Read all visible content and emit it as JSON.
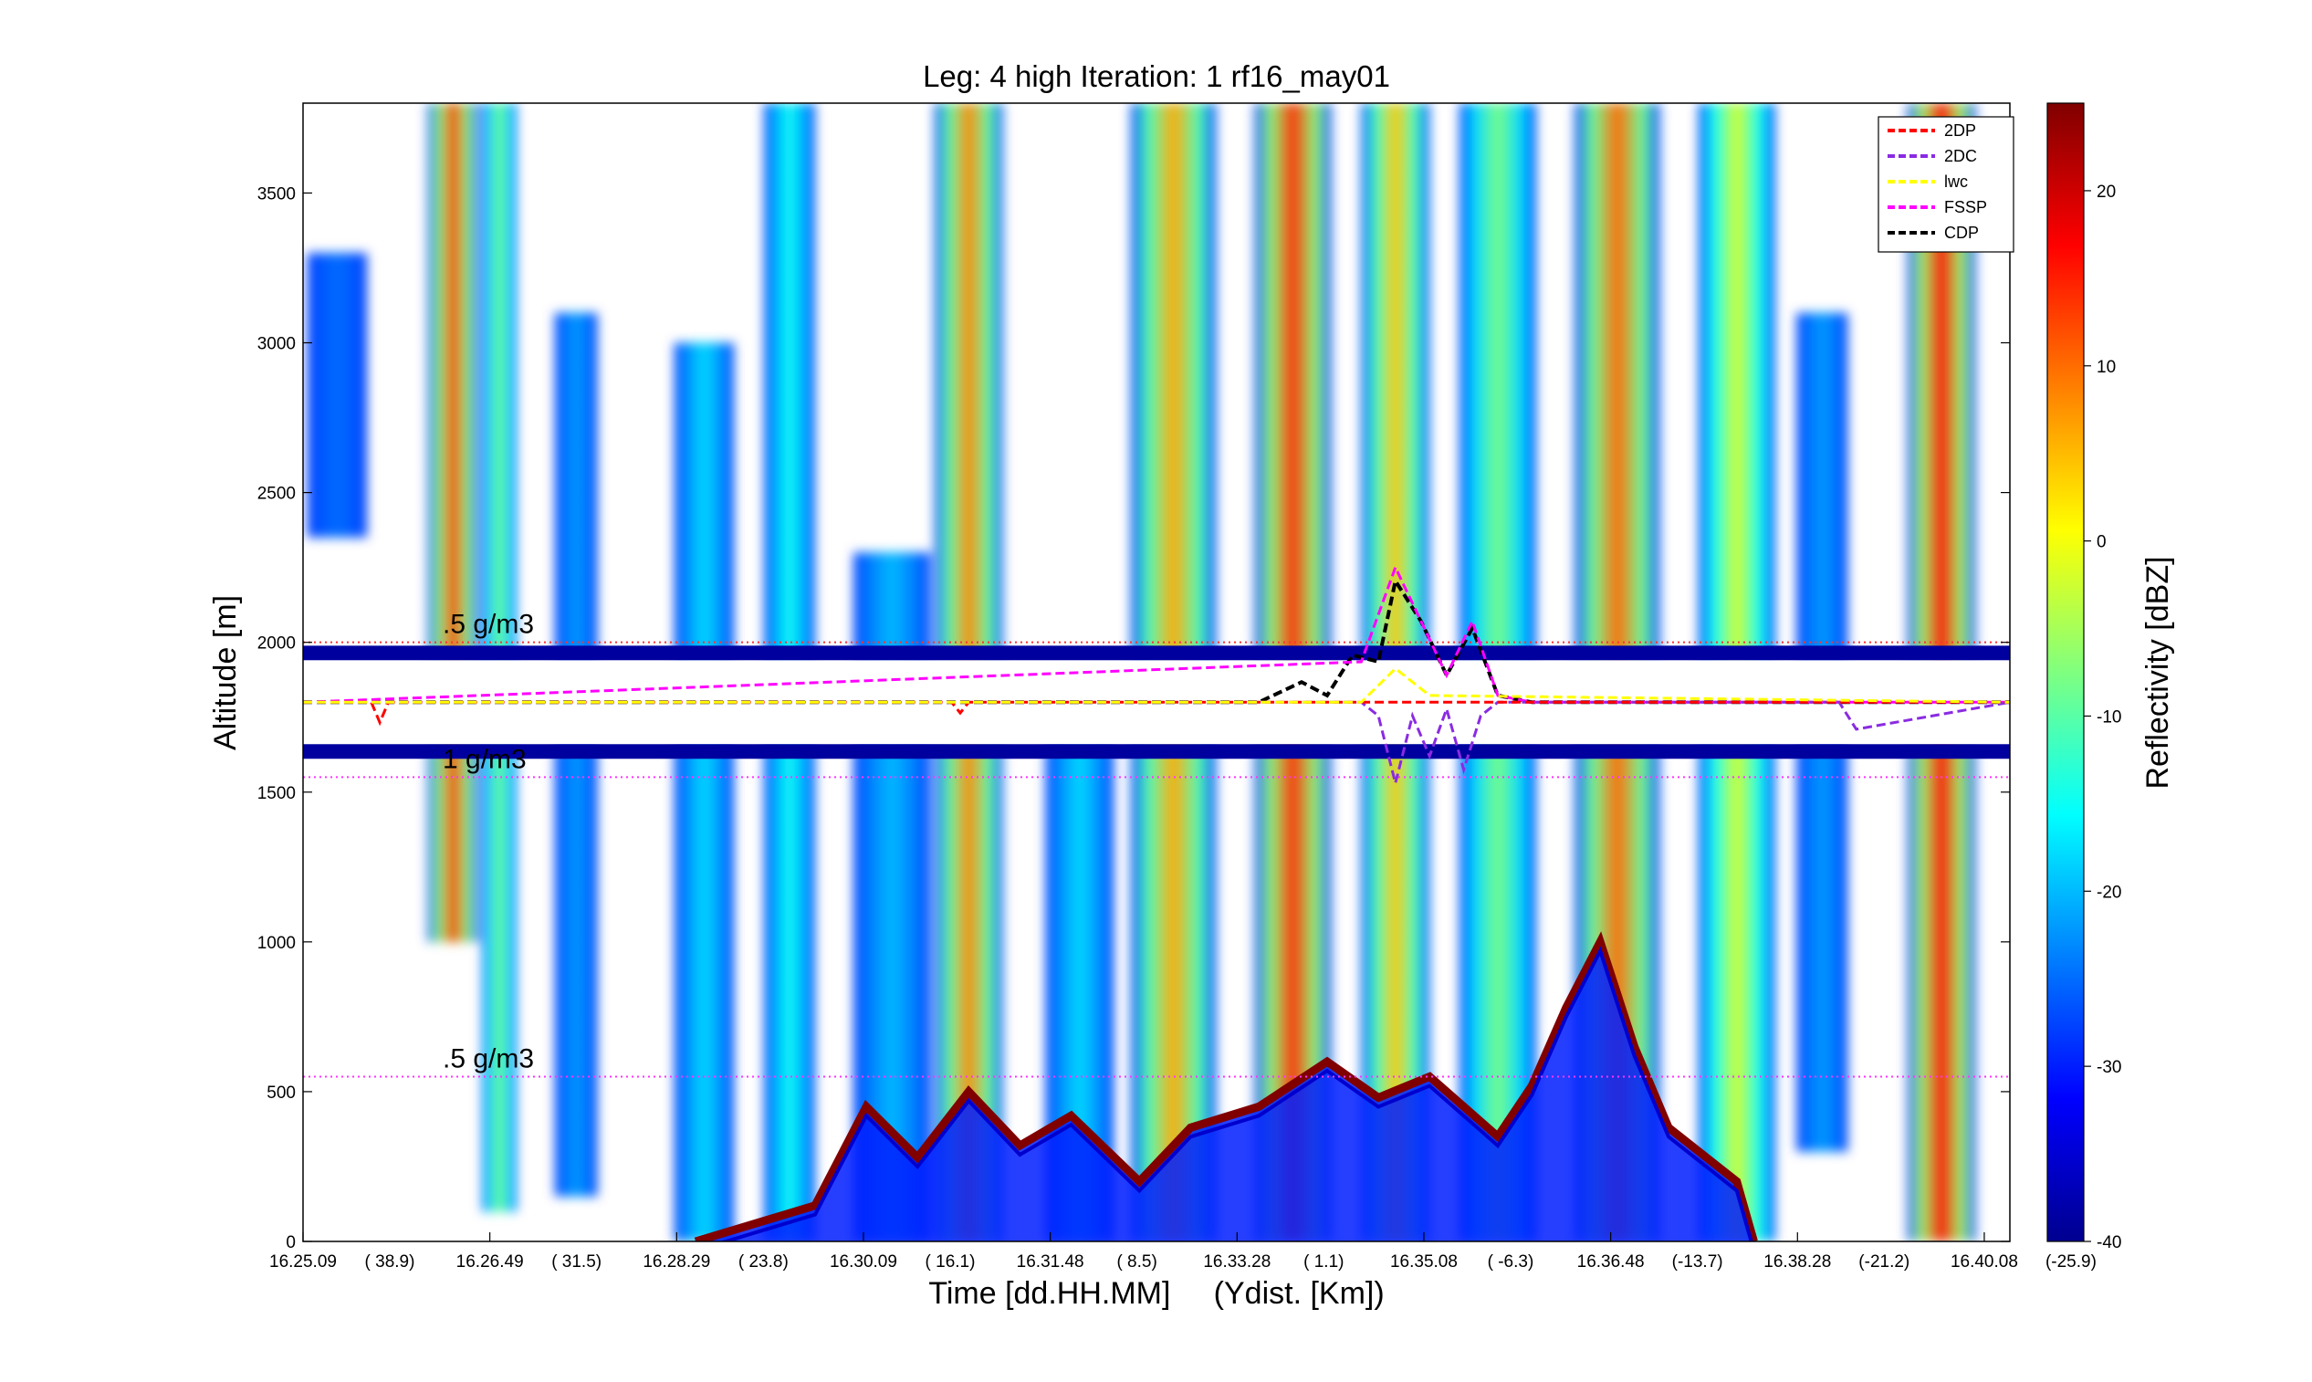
{
  "chart_data": {
    "type": "heatmap",
    "title": "Leg: 4 high Iteration: 1  rf16_may01",
    "xlabel": "Time [dd.HH.MM]     (Ydist. [Km])",
    "ylabel": "Altitude [m]",
    "colorbar_label": "Reflectivity [dBZ]",
    "ylim": [
      0,
      3800
    ],
    "y_ticks": [
      0,
      500,
      1000,
      1500,
      2000,
      2500,
      3000,
      3500
    ],
    "x_ticks": [
      {
        "time": "16.25.09",
        "dist": "( 38.9)"
      },
      {
        "time": "16.26.49",
        "dist": "( 31.5)"
      },
      {
        "time": "16.28.29",
        "dist": "( 23.8)"
      },
      {
        "time": "16.30.09",
        "dist": "( 16.1)"
      },
      {
        "time": "16.31.48",
        "dist": "( 8.5)"
      },
      {
        "time": "16.33.28",
        "dist": "( 1.1)"
      },
      {
        "time": "16.35.08",
        "dist": "( -6.3)"
      },
      {
        "time": "16.36.48",
        "dist": "(-13.7)"
      },
      {
        "time": "16.38.28",
        "dist": "(-21.2)"
      },
      {
        "time": "16.40.08",
        "dist": "(-25.9)"
      }
    ],
    "colorbar_range": [
      -40,
      25
    ],
    "colorbar_ticks": [
      20,
      10,
      0,
      -10,
      -20,
      -30,
      -40
    ],
    "grid": false,
    "legend_position": "top-right",
    "legend": [
      {
        "name": "2DP",
        "color": "#ff0000"
      },
      {
        "name": "2DC",
        "color": "#8a2be2"
      },
      {
        "name": "lwc",
        "color": "#ffff00"
      },
      {
        "name": "FSSP",
        "color": "#ff00ff"
      },
      {
        "name": "CDP",
        "color": "#000000"
      }
    ],
    "reference_lines": [
      {
        "label": ".5 g/m3",
        "altitude": 2000,
        "color": "#ff3333"
      },
      {
        "label": "1 g/m3",
        "altitude": 1550,
        "color": "#ff33ff"
      },
      {
        "label": ".5 g/m3",
        "altitude": 550,
        "color": "#ff33ff"
      }
    ],
    "flight_altitude": 1800,
    "cloud_columns": [
      {
        "t": 0.02,
        "w": 0.035,
        "top": 3300,
        "bot": 2350,
        "peak": -25
      },
      {
        "t": 0.088,
        "w": 0.03,
        "top": 3800,
        "bot": 1000,
        "peak": 12
      },
      {
        "t": 0.115,
        "w": 0.02,
        "top": 3800,
        "bot": 100,
        "peak": -8
      },
      {
        "t": 0.16,
        "w": 0.025,
        "top": 3100,
        "bot": 150,
        "peak": -22
      },
      {
        "t": 0.235,
        "w": 0.035,
        "top": 3000,
        "bot": 0,
        "peak": -18
      },
      {
        "t": 0.285,
        "w": 0.03,
        "top": 3800,
        "bot": 0,
        "peak": -15
      },
      {
        "t": 0.345,
        "w": 0.045,
        "top": 2300,
        "bot": 0,
        "peak": -20
      },
      {
        "t": 0.39,
        "w": 0.04,
        "top": 3800,
        "bot": 0,
        "peak": 8
      },
      {
        "t": 0.455,
        "w": 0.04,
        "top": 1700,
        "bot": 0,
        "peak": -18
      },
      {
        "t": 0.51,
        "w": 0.05,
        "top": 3800,
        "bot": 0,
        "peak": 6
      },
      {
        "t": 0.58,
        "w": 0.045,
        "top": 3800,
        "bot": 0,
        "peak": 14
      },
      {
        "t": 0.64,
        "w": 0.04,
        "top": 3800,
        "bot": 0,
        "peak": 4
      },
      {
        "t": 0.7,
        "w": 0.045,
        "top": 3800,
        "bot": 0,
        "peak": -8
      },
      {
        "t": 0.77,
        "w": 0.05,
        "top": 3800,
        "bot": 0,
        "peak": 10
      },
      {
        "t": 0.84,
        "w": 0.045,
        "top": 3800,
        "bot": 0,
        "peak": -2
      },
      {
        "t": 0.89,
        "w": 0.03,
        "top": 3100,
        "bot": 300,
        "peak": -22
      },
      {
        "t": 0.96,
        "w": 0.04,
        "top": 3800,
        "bot": 0,
        "peak": 16
      }
    ],
    "surface_echo": [
      {
        "t": 0.23,
        "alt": 0
      },
      {
        "t": 0.3,
        "alt": 120
      },
      {
        "t": 0.33,
        "alt": 450
      },
      {
        "t": 0.36,
        "alt": 280
      },
      {
        "t": 0.39,
        "alt": 500
      },
      {
        "t": 0.42,
        "alt": 320
      },
      {
        "t": 0.45,
        "alt": 420
      },
      {
        "t": 0.49,
        "alt": 200
      },
      {
        "t": 0.52,
        "alt": 380
      },
      {
        "t": 0.56,
        "alt": 450
      },
      {
        "t": 0.6,
        "alt": 600
      },
      {
        "t": 0.63,
        "alt": 480
      },
      {
        "t": 0.66,
        "alt": 550
      },
      {
        "t": 0.7,
        "alt": 350
      },
      {
        "t": 0.72,
        "alt": 520
      },
      {
        "t": 0.74,
        "alt": 780
      },
      {
        "t": 0.76,
        "alt": 1000
      },
      {
        "t": 0.78,
        "alt": 650
      },
      {
        "t": 0.8,
        "alt": 380
      },
      {
        "t": 0.84,
        "alt": 200
      },
      {
        "t": 0.85,
        "alt": 0
      }
    ],
    "series": [
      {
        "name": "CDP",
        "color": "#000000",
        "x": [
          0.0,
          0.56,
          0.585,
          0.6,
          0.615,
          0.63,
          0.64,
          0.655,
          0.67,
          0.685,
          0.7,
          0.72,
          1.0
        ],
        "y": [
          0,
          0,
          0.15,
          0.05,
          0.35,
          0.3,
          0.9,
          0.6,
          0.2,
          0.55,
          0.05,
          0,
          0
        ]
      },
      {
        "name": "FSSP",
        "color": "#ff00ff",
        "x": [
          0.0,
          0.62,
          0.64,
          0.655,
          0.67,
          0.685,
          0.7,
          0.72,
          1.0
        ],
        "y": [
          0,
          0.3,
          1.0,
          0.6,
          0.2,
          0.6,
          0.05,
          0,
          0
        ]
      },
      {
        "name": "2DC",
        "color": "#8a2be2",
        "x": [
          0.0,
          0.62,
          0.63,
          0.64,
          0.65,
          0.66,
          0.67,
          0.68,
          0.69,
          0.7,
          0.9,
          0.91,
          1.0
        ],
        "y": [
          0,
          0,
          -0.1,
          -0.6,
          -0.1,
          -0.4,
          -0.05,
          -0.5,
          -0.1,
          0,
          0,
          -0.2,
          0
        ]
      },
      {
        "name": "2DP",
        "color": "#ff0000",
        "x": [
          0.0,
          0.04,
          0.045,
          0.05,
          0.38,
          0.385,
          0.39,
          1.0
        ],
        "y": [
          0,
          0,
          -0.15,
          0,
          0,
          -0.08,
          0,
          0
        ]
      },
      {
        "name": "lwc",
        "color": "#ffff00",
        "x": [
          0.0,
          0.62,
          0.64,
          0.66,
          1.0
        ],
        "y": [
          0,
          0,
          0.25,
          0.05,
          0
        ]
      }
    ]
  }
}
